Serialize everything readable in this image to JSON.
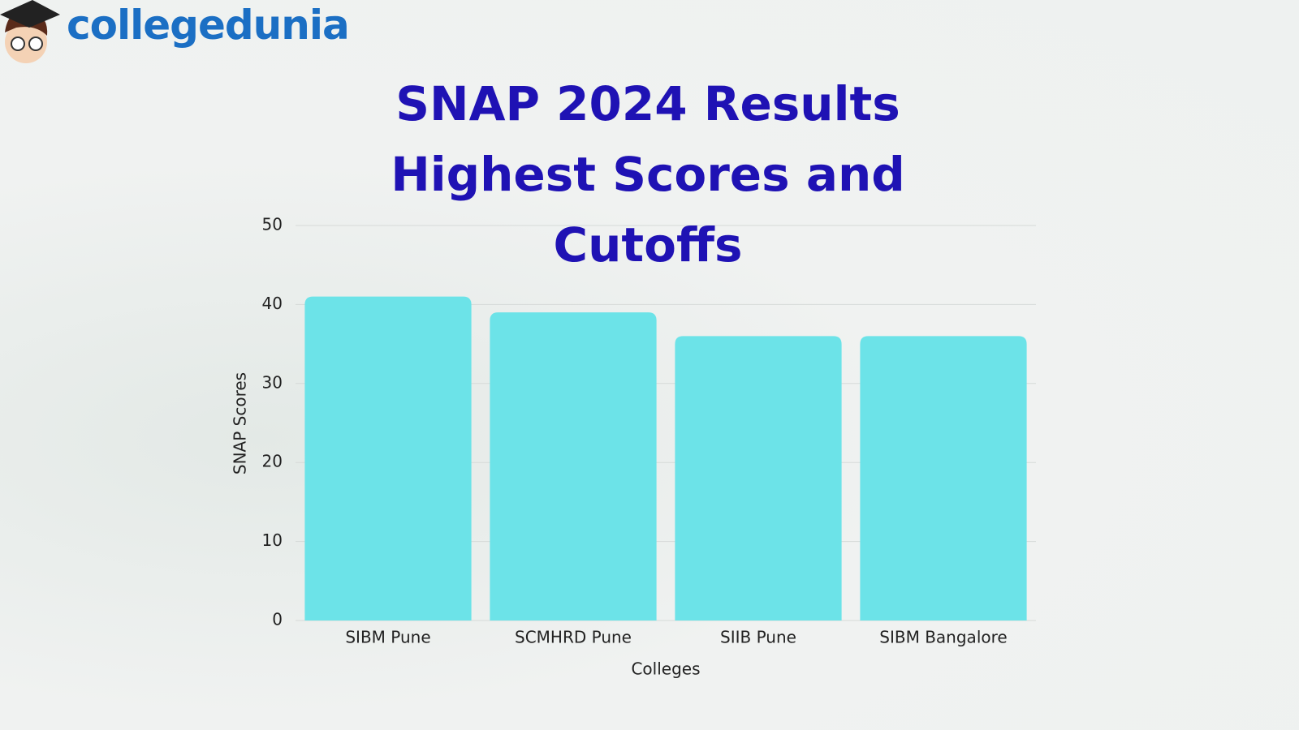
{
  "brand": "collegedunia",
  "chart_data": {
    "type": "bar",
    "title": "SNAP 2024 Results Highest Scores and Cutoffs",
    "x_label": "Colleges",
    "y_label": "SNAP Scores",
    "categories": [
      "SIBM Pune",
      "SCMHRD Pune",
      "SIIB Pune",
      "SIBM Bangalore"
    ],
    "values": [
      41,
      39,
      36,
      36
    ],
    "color": "#6ce3e8",
    "ylim": [
      0,
      50
    ],
    "yticks": [
      0,
      10,
      20,
      30,
      40,
      50
    ],
    "grid": true
  }
}
